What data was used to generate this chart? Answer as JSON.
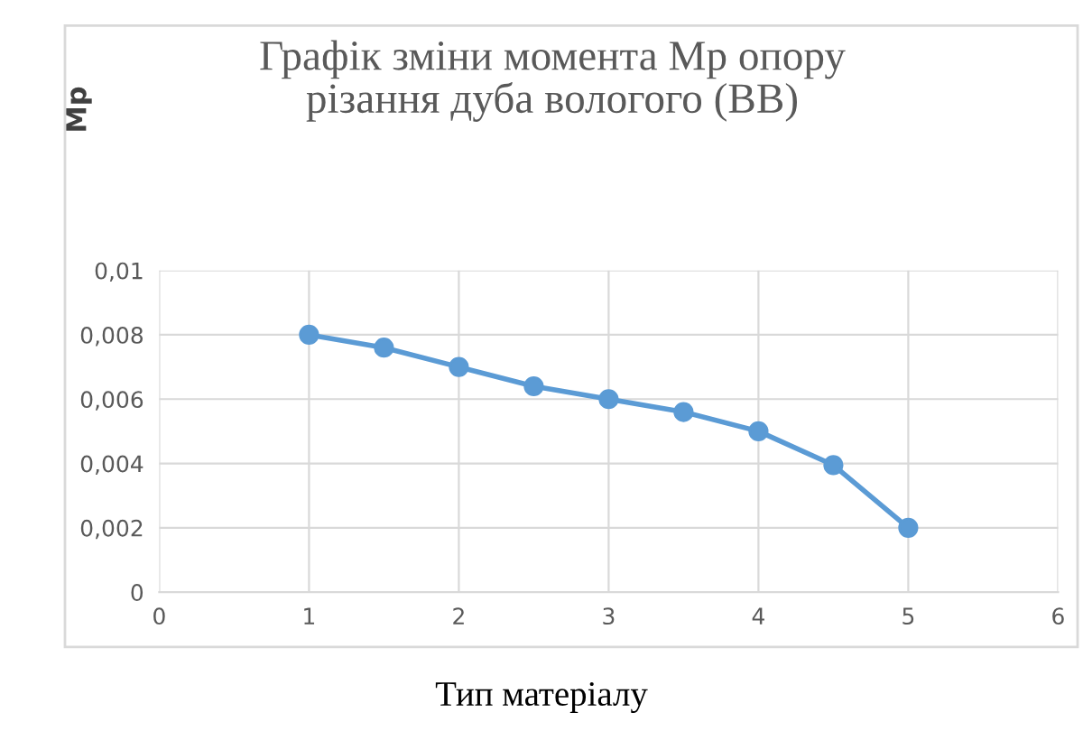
{
  "chart_data": {
    "type": "line",
    "title": "Графік зміни момента Mp опору\nрізання дуба вологого (ВВ)",
    "xlabel": "Тип матеріалу",
    "ylabel": "Mp",
    "x": [
      1,
      1.5,
      2,
      2.5,
      3,
      3.5,
      4,
      4.5,
      5
    ],
    "series": [
      {
        "color": "#5b9bd5",
        "values": [
          0.008,
          0.0076,
          0.007,
          0.0064,
          0.006,
          0.0056,
          0.005,
          0.00395,
          0.002
        ]
      }
    ],
    "xlim": [
      0,
      6
    ],
    "xticks": [
      0,
      1,
      2,
      3,
      4,
      5,
      6
    ],
    "ylim": [
      0,
      0.01
    ],
    "yticks": [
      0,
      {
        "value": 0.002,
        "label": "0,002"
      },
      {
        "value": 0.004,
        "label": "0,004"
      },
      {
        "value": 0.006,
        "label": "0,006"
      },
      {
        "value": 0.008,
        "label": "0,008"
      },
      {
        "value": 0.01,
        "label": "0,01"
      }
    ],
    "grid": true,
    "marker": "circle",
    "line_style": "solid"
  }
}
